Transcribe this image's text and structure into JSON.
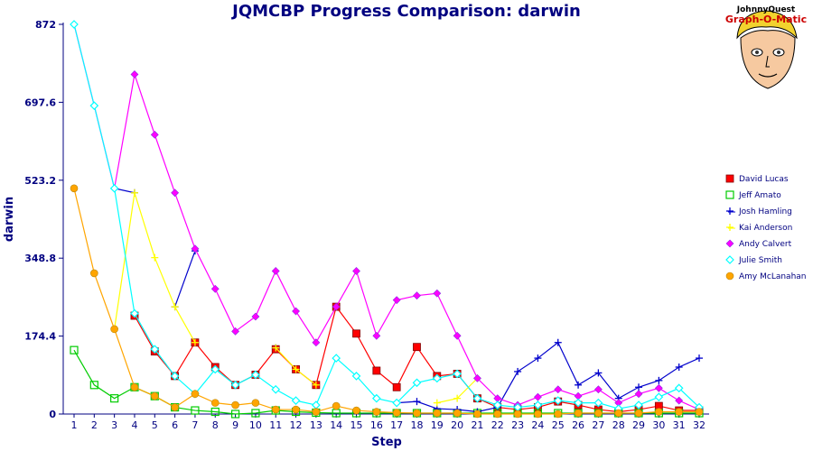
{
  "chart_data": {
    "type": "line",
    "title": "JQMCBP Progress Comparison: darwin",
    "xlabel": "Step",
    "ylabel": "darwin",
    "ylim": [
      0,
      872
    ],
    "yticks": [
      "0",
      "174.4",
      "348.8",
      "523.2",
      "697.6",
      "872"
    ],
    "ytick_values": [
      0,
      174.4,
      348.8,
      523.2,
      697.6,
      872
    ],
    "x": [
      1,
      2,
      3,
      4,
      5,
      6,
      7,
      8,
      9,
      10,
      11,
      12,
      13,
      14,
      15,
      16,
      17,
      18,
      19,
      20,
      21,
      22,
      23,
      24,
      25,
      26,
      27,
      28,
      29,
      30,
      31,
      32
    ],
    "legend_position": "right",
    "series": [
      {
        "name": "David Lucas",
        "color": "#ff0000",
        "marker": "square",
        "values": [
          null,
          null,
          null,
          220,
          140,
          85,
          160,
          105,
          65,
          88,
          145,
          100,
          65,
          240,
          180,
          97,
          60,
          150,
          85,
          90,
          35,
          15,
          10,
          15,
          28,
          20,
          10,
          5,
          10,
          18,
          8,
          8
        ]
      },
      {
        "name": "Jeff Amato",
        "color": "#00cc00",
        "marker": "hollow-square",
        "values": [
          143,
          65,
          35,
          60,
          40,
          15,
          8,
          5,
          0,
          2,
          8,
          5,
          3,
          2,
          2,
          2,
          2,
          2,
          2,
          2,
          2,
          2,
          2,
          2,
          2,
          2,
          2,
          2,
          2,
          2,
          2,
          2
        ]
      },
      {
        "name": "Josh Hamling",
        "color": "#0000cc",
        "marker": "plus",
        "values": [
          null,
          null,
          505,
          495,
          null,
          240,
          365,
          null,
          null,
          null,
          148,
          null,
          null,
          null,
          null,
          null,
          25,
          28,
          12,
          10,
          5,
          15,
          95,
          125,
          160,
          65,
          92,
          35,
          60,
          75,
          105,
          125
        ]
      },
      {
        "name": "Kai Anderson",
        "color": "#ffff00",
        "marker": "plus",
        "values": [
          null,
          null,
          190,
          495,
          350,
          240,
          160,
          null,
          null,
          null,
          148,
          100,
          65,
          null,
          null,
          null,
          null,
          null,
          25,
          35,
          80,
          null,
          null,
          null,
          null,
          null,
          null,
          null,
          null,
          null,
          null,
          null
        ]
      },
      {
        "name": "Andy Calvert",
        "color": "#ff00ff",
        "marker": "diamond",
        "values": [
          872,
          690,
          505,
          760,
          625,
          495,
          370,
          280,
          185,
          218,
          320,
          230,
          160,
          240,
          320,
          175,
          255,
          265,
          270,
          175,
          80,
          35,
          20,
          38,
          55,
          40,
          55,
          25,
          45,
          58,
          30,
          10
        ]
      },
      {
        "name": "Julie Smith",
        "color": "#00ffff",
        "marker": "hollow-diamond",
        "values": [
          872,
          690,
          505,
          225,
          145,
          85,
          45,
          100,
          65,
          88,
          55,
          30,
          20,
          125,
          85,
          35,
          25,
          70,
          80,
          90,
          35,
          20,
          15,
          20,
          30,
          25,
          25,
          12,
          20,
          38,
          58,
          15
        ]
      },
      {
        "name": "Amy McLanahan",
        "color": "#ffa500",
        "marker": "circle",
        "values": [
          505,
          315,
          190,
          60,
          40,
          15,
          45,
          25,
          20,
          25,
          10,
          10,
          5,
          18,
          8,
          5,
          3,
          2,
          2,
          2,
          0,
          0,
          0,
          0,
          0,
          2,
          2,
          2,
          2,
          5,
          5,
          5
        ]
      }
    ]
  },
  "logo": {
    "line1": "JohnnyQuest",
    "line2": "Graph-O-Matic"
  }
}
